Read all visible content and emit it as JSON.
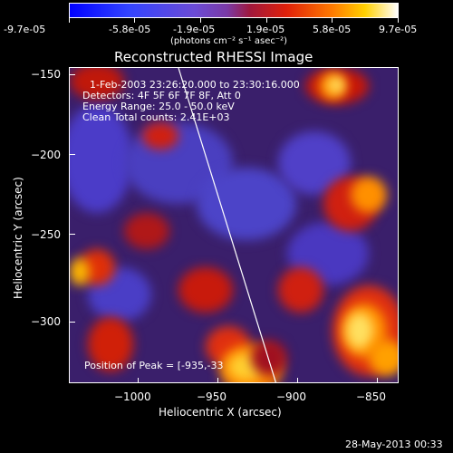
{
  "colorbar": {
    "tick_labels": [
      "-9.7e-05",
      "-5.8e-05",
      "-1.9e-05",
      "1.9e-05",
      "5.8e-05",
      "9.7e-05"
    ],
    "units_label": "(photons cm⁻² s⁻¹ asec⁻²)"
  },
  "plot": {
    "title": "Reconstructed RHESSI Image",
    "info_lines": [
      "1-Feb-2003 23:26:20.000 to 23:30:16.000",
      "Detectors: 4F 5F 6F 7F 8F, Att 0",
      "Energy Range: 25.0 - 50.0 keV",
      "Clean    Total counts: 2.41E+03"
    ],
    "peak_text": "Position of Peak = [-935,-33",
    "x_axis": {
      "label": "Heliocentric X (arcsec)",
      "tick_labels": [
        "−1000",
        "−950",
        "−900",
        "−850"
      ]
    },
    "y_axis": {
      "label": "Heliocentric Y (arcsec)",
      "tick_labels": [
        "−150",
        "−200",
        "−250",
        "−300"
      ]
    }
  },
  "footer": {
    "timestamp": "28-May-2013 00:33"
  },
  "colors": {
    "background": "#000000",
    "text": "#ffffff",
    "limb_line": "#ffffff"
  }
}
